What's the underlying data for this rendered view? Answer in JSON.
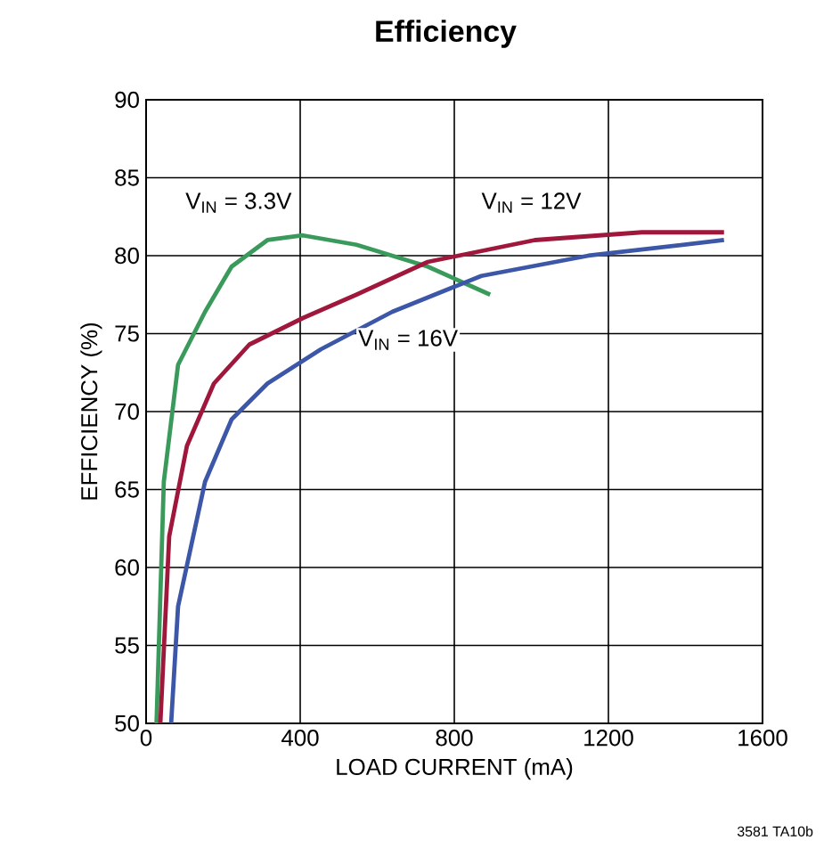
{
  "chart_data": {
    "type": "line",
    "title": "Efficiency",
    "xlabel": "LOAD CURRENT (mA)",
    "ylabel": "EFFICIENCY (%)",
    "xlim": [
      0,
      1600
    ],
    "ylim": [
      50,
      90
    ],
    "xticks": [
      0,
      400,
      800,
      1200,
      1600
    ],
    "yticks": [
      50,
      55,
      60,
      65,
      70,
      75,
      80,
      85,
      90
    ],
    "grid": true,
    "legend": false,
    "line_style": "solid",
    "marker": "none",
    "series": [
      {
        "name": "V$_{IN}$ = 3.3V",
        "color": "#3a9a5b",
        "x": [
          27,
          46,
          83,
          153,
          222,
          315,
          407,
          546,
          731,
          893
        ],
        "values": [
          50,
          65.5,
          73,
          76.4,
          79.3,
          81,
          81.3,
          80.7,
          79.3,
          77.5
        ]
      },
      {
        "name": "V$_{IN}$ = 12V",
        "color": "#a0173c",
        "x": [
          37,
          60,
          106,
          176,
          268,
          407,
          546,
          731,
          1009,
          1287,
          1500
        ],
        "values": [
          50,
          62,
          67.8,
          71.8,
          74.3,
          76,
          77.5,
          79.6,
          81,
          81.5,
          81.5
        ]
      },
      {
        "name": "V$_{IN}$ = 16V",
        "color": "#3c56a8",
        "x": [
          65,
          83,
          153,
          222,
          315,
          454,
          639,
          870,
          1148,
          1500
        ],
        "values": [
          50,
          57.5,
          65.5,
          69.5,
          71.8,
          74,
          76.4,
          78.7,
          80,
          81
        ]
      }
    ],
    "annotations": [
      "3581 TA10b"
    ]
  }
}
